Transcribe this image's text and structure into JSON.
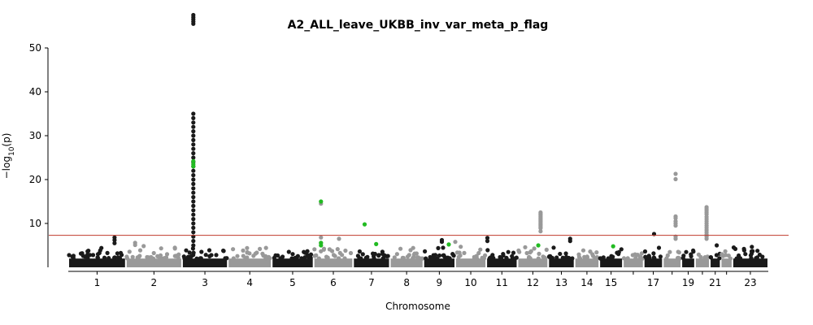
{
  "chart_data": {
    "type": "scatter",
    "title": "A2_ALL_leave_UKBB_inv_var_meta_p_flag",
    "xlabel": "Chromosome",
    "ylabel_main": "−log",
    "ylabel_sub": "10",
    "ylabel_tail": "(p)",
    "ylim": [
      0,
      60
    ],
    "yticks": [
      10,
      20,
      30,
      40,
      50
    ],
    "significance_line": 7.3,
    "colors": {
      "dark": "#1a1a1a",
      "light": "#999999",
      "highlight": "#22bb22",
      "threshold": "#c0392b"
    },
    "chromosomes": [
      {
        "name": "1",
        "label": "1",
        "start": 0,
        "end": 249
      },
      {
        "name": "2",
        "label": "2",
        "start": 249,
        "end": 492
      },
      {
        "name": "3",
        "label": "3",
        "start": 492,
        "end": 690
      },
      {
        "name": "4",
        "label": "4",
        "start": 690,
        "end": 880
      },
      {
        "name": "5",
        "label": "5",
        "start": 880,
        "end": 1061
      },
      {
        "name": "6",
        "label": "6",
        "start": 1061,
        "end": 1232
      },
      {
        "name": "7",
        "label": "7",
        "start": 1232,
        "end": 1391
      },
      {
        "name": "8",
        "label": "8",
        "start": 1391,
        "end": 1536
      },
      {
        "name": "9",
        "label": "9",
        "start": 1536,
        "end": 1674
      },
      {
        "name": "10",
        "label": "10",
        "start": 1674,
        "end": 1808
      },
      {
        "name": "11",
        "label": "11",
        "start": 1808,
        "end": 1943
      },
      {
        "name": "12",
        "label": "12",
        "start": 1943,
        "end": 2076
      },
      {
        "name": "13",
        "label": "13",
        "start": 2076,
        "end": 2190
      },
      {
        "name": "14",
        "label": "14",
        "start": 2190,
        "end": 2297
      },
      {
        "name": "15",
        "label": "15",
        "start": 2297,
        "end": 2399
      },
      {
        "name": "16",
        "label": "",
        "start": 2399,
        "end": 2489
      },
      {
        "name": "17",
        "label": "17",
        "start": 2489,
        "end": 2572
      },
      {
        "name": "18",
        "label": "",
        "start": 2572,
        "end": 2652
      },
      {
        "name": "19",
        "label": "19",
        "start": 2652,
        "end": 2711
      },
      {
        "name": "20",
        "label": "",
        "start": 2711,
        "end": 2775
      },
      {
        "name": "21",
        "label": "21",
        "start": 2775,
        "end": 2822
      },
      {
        "name": "22",
        "label": "",
        "start": 2822,
        "end": 2873
      },
      {
        "name": "23",
        "label": "23",
        "start": 2873,
        "end": 3028
      }
    ],
    "peaks": [
      {
        "chrom": "1",
        "pos": 200,
        "values": [
          6.8,
          6.2,
          5.5
        ]
      },
      {
        "chrom": "2",
        "pos": 40,
        "values": [
          5.6,
          5.1
        ]
      },
      {
        "chrom": "3",
        "pos": 49,
        "values": [
          57.5,
          57.0,
          56.5,
          56.0,
          55.5,
          35,
          34,
          33,
          32,
          31,
          30,
          29,
          28,
          27,
          26,
          25,
          24,
          23,
          22,
          21,
          20,
          19,
          18,
          17,
          16,
          15,
          14,
          13,
          12,
          11,
          10,
          9,
          8,
          7,
          6,
          5
        ]
      },
      {
        "chrom": "3",
        "pos": 49,
        "highlight": true,
        "values": [
          24.2,
          23.5,
          23.0
        ]
      },
      {
        "chrom": "6",
        "pos": 32,
        "values": [
          14.5,
          6.8,
          5.5
        ]
      },
      {
        "chrom": "6",
        "pos": 32,
        "highlight": true,
        "values": [
          15.0,
          5.6,
          5.0
        ]
      },
      {
        "chrom": "6",
        "pos": 110,
        "values": [
          6.5
        ]
      },
      {
        "chrom": "7",
        "pos": 50,
        "highlight": true,
        "values": [
          9.8
        ]
      },
      {
        "chrom": "7",
        "pos": 100,
        "highlight": true,
        "values": [
          5.3
        ]
      },
      {
        "chrom": "9",
        "pos": 80,
        "values": [
          6.2,
          5.8
        ]
      },
      {
        "chrom": "9",
        "pos": 110,
        "highlight": true,
        "values": [
          5.2
        ]
      },
      {
        "chrom": "10",
        "pos": 0,
        "values": [
          5.8
        ]
      },
      {
        "chrom": "11",
        "pos": 5,
        "values": [
          6.7,
          6.0
        ]
      },
      {
        "chrom": "12",
        "pos": 100,
        "values": [
          12.5,
          12.2,
          11.9,
          11.6,
          11.3,
          11.0,
          10.7,
          10.4,
          10.1,
          9.8,
          9.5,
          9.2,
          8.9,
          8.2
        ]
      },
      {
        "chrom": "12",
        "pos": 90,
        "highlight": true,
        "values": [
          5.0
        ]
      },
      {
        "chrom": "13",
        "pos": 95,
        "values": [
          6.5,
          6.0
        ]
      },
      {
        "chrom": "15",
        "pos": 60,
        "highlight": true,
        "values": [
          4.8
        ]
      },
      {
        "chrom": "17",
        "pos": 45,
        "values": [
          7.6
        ]
      },
      {
        "chrom": "18",
        "pos": 55,
        "values": [
          21.3,
          20.1,
          11.6,
          11.2,
          10.5,
          10.0,
          9.5,
          7.0,
          6.5
        ]
      },
      {
        "chrom": "20",
        "pos": 50,
        "values": [
          13.7,
          13.3,
          12.9,
          12.5,
          12.1,
          11.5,
          11.0,
          10.5,
          10.0,
          9.5,
          9.0,
          8.5,
          8.0,
          7.5,
          7.0,
          6.5
        ]
      },
      {
        "chrom": "21",
        "pos": 30,
        "values": [
          5.0
        ]
      },
      {
        "chrom": "23",
        "pos": 50,
        "values": [
          4.2
        ]
      }
    ]
  }
}
